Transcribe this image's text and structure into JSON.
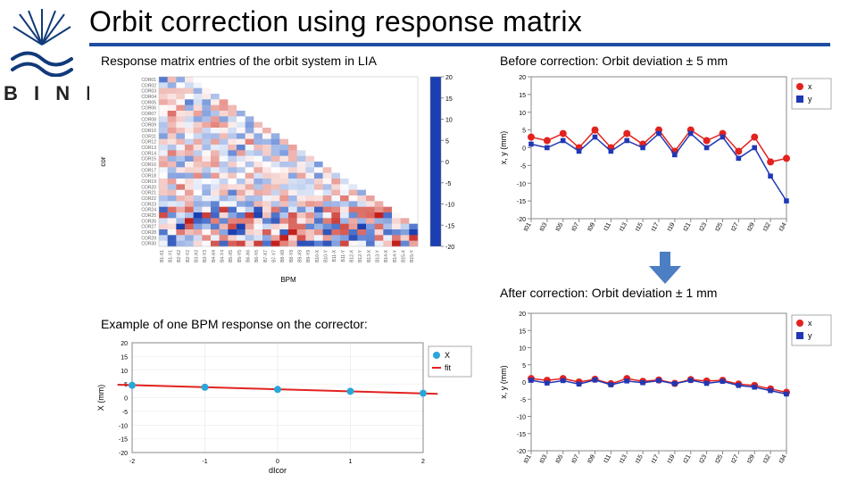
{
  "title": "Orbit correction using response matrix",
  "org": "B I N P",
  "captions": {
    "heatmap": "Response matrix entries of the orbit system in LIA",
    "before": "Before correction: Orbit deviation ± 5 mm",
    "after": "After correction: Orbit deviation ± 1 mm",
    "bpm_example": "Example of one BPM response on the corrector:"
  },
  "colors": {
    "accent": "#1f4ea1",
    "series_x": "#e2221f",
    "series_y": "#2038b5",
    "fit_line": "#e2221f",
    "fit_point": "#29a6da",
    "axis": "#888888",
    "grid": "#e6e6e6",
    "arrow": "#4b7ec2",
    "logo": "#113a7a",
    "tick_font": "#606060"
  },
  "heatmap": {
    "type": "heatmap",
    "nrows": 30,
    "ncols": 30,
    "row_labels_sample": [
      "COR01",
      "COR02",
      "COR03",
      "COR04",
      "COR05",
      "COR06",
      "COR07",
      "COR08",
      "COR09",
      "COR10",
      "COR11",
      "COR12",
      "COR13",
      "COR14",
      "COR15",
      "COR16",
      "COR17",
      "COR18",
      "COR19",
      "COR20",
      "COR21",
      "COR22",
      "COR23",
      "COR24",
      "COR25",
      "COR26",
      "COR27",
      "COR28",
      "COR29",
      "COR30"
    ],
    "col_labels_sample": [
      "B1-X1",
      "B1-Y1",
      "B2-X2",
      "B2-Y2",
      "B3-X3",
      "B3-Y3",
      "B4-X4",
      "B4-Y4",
      "B5-X5",
      "B5-Y5",
      "B6-X6",
      "B6-Y6",
      "B7-X7",
      "B7-Y7",
      "B8-X8",
      "B8-Y8",
      "B9-X9",
      "B9-Y9",
      "B10-X",
      "B10-Y",
      "B11-X",
      "B11-Y",
      "B12-X",
      "B12-Y",
      "B13-X",
      "B13-Y",
      "B14-X",
      "B14-Y",
      "B15-X",
      "B15-Y"
    ],
    "vmin": -20,
    "vmax": 20,
    "colorbar_ticks": [
      20,
      15,
      10,
      5,
      0,
      -5,
      -10,
      -15,
      -20
    ],
    "colorscale": [
      [
        -20,
        "#1b3fb0"
      ],
      [
        -10,
        "#6a8ed8"
      ],
      [
        0,
        "#ffffff"
      ],
      [
        10,
        "#e58a82"
      ],
      [
        20,
        "#c3201c"
      ]
    ],
    "xlabel": "BPM",
    "ylabel": "cor",
    "tick_fontsize": 5,
    "label_fontsize": 8
  },
  "before_chart": {
    "type": "line",
    "ylabel": "x, y (mm)",
    "ylim": [
      -20,
      20
    ],
    "yticks": [
      -20,
      -15,
      -10,
      -5,
      0,
      5,
      10,
      15,
      20
    ],
    "xticks": [
      "t01",
      "t03",
      "t05",
      "t07",
      "t09",
      "t11",
      "t13",
      "t15",
      "t17",
      "t19",
      "t21",
      "t23",
      "t25",
      "t27",
      "t29",
      "t32",
      "t34"
    ],
    "legend": [
      {
        "label": "x",
        "color": "#e2221f",
        "marker": "circle"
      },
      {
        "label": "y",
        "color": "#2038b5",
        "marker": "square"
      }
    ],
    "series": {
      "x": [
        3,
        2,
        4,
        0,
        5,
        0,
        4,
        1,
        5,
        -1,
        5,
        2,
        4,
        -1,
        3,
        -4,
        -3
      ],
      "y": [
        1,
        0,
        2,
        -1,
        3,
        -1,
        2,
        0,
        4,
        -2,
        4,
        0,
        3,
        -3,
        0,
        -8,
        -15
      ]
    },
    "marker_size": 4,
    "line_width": 1.5,
    "tick_fontsize": 7,
    "label_fontsize": 9
  },
  "after_chart": {
    "type": "line",
    "ylabel": "x, y (mm)",
    "ylim": [
      -20,
      20
    ],
    "yticks": [
      -20,
      -15,
      -10,
      -5,
      0,
      5,
      10,
      15,
      20
    ],
    "xticks": [
      "t01",
      "t03",
      "t05",
      "t07",
      "t09",
      "t11",
      "t13",
      "t15",
      "t17",
      "t19",
      "t21",
      "t23",
      "t25",
      "t27",
      "t29",
      "t32",
      "t34"
    ],
    "legend": [
      {
        "label": "x",
        "color": "#e2221f",
        "marker": "circle"
      },
      {
        "label": "y",
        "color": "#2038b5",
        "marker": "square"
      }
    ],
    "series": {
      "x": [
        1,
        0.5,
        1,
        0,
        0.8,
        -0.5,
        1,
        0.2,
        0.6,
        -0.4,
        0.7,
        0.3,
        0.5,
        -0.6,
        -1,
        -2,
        -3
      ],
      "y": [
        0.5,
        -0.3,
        0.4,
        -0.6,
        0.6,
        -0.8,
        0.3,
        -0.2,
        0.4,
        -0.5,
        0.5,
        -0.4,
        0.2,
        -1,
        -1.5,
        -2.5,
        -3.5
      ]
    },
    "marker_size": 4,
    "line_width": 1.5,
    "tick_fontsize": 7,
    "label_fontsize": 9
  },
  "bpm_chart": {
    "type": "scatter+fit",
    "xlabel": "dIcor",
    "ylabel": "X (mm)",
    "xlim": [
      -2,
      2
    ],
    "xticks": [
      -2,
      -1,
      0,
      1,
      2
    ],
    "ylim": [
      -20,
      20
    ],
    "yticks": [
      -20,
      -15,
      -10,
      -5,
      0,
      5,
      10,
      15,
      20
    ],
    "legend": [
      {
        "label": "X",
        "color": "#29a6da",
        "marker": "circle"
      },
      {
        "label": "fit",
        "color": "#e2221f",
        "marker": "line"
      }
    ],
    "points": {
      "x": [
        -2,
        -1,
        0,
        1,
        2
      ],
      "y": [
        4.5,
        3.8,
        3.0,
        2.3,
        1.6
      ]
    },
    "fit": {
      "x": [
        -2.2,
        2.2
      ],
      "y": [
        4.7,
        1.4
      ]
    },
    "marker_size": 4,
    "line_width": 2,
    "tick_fontsize": 7,
    "label_fontsize": 9
  }
}
